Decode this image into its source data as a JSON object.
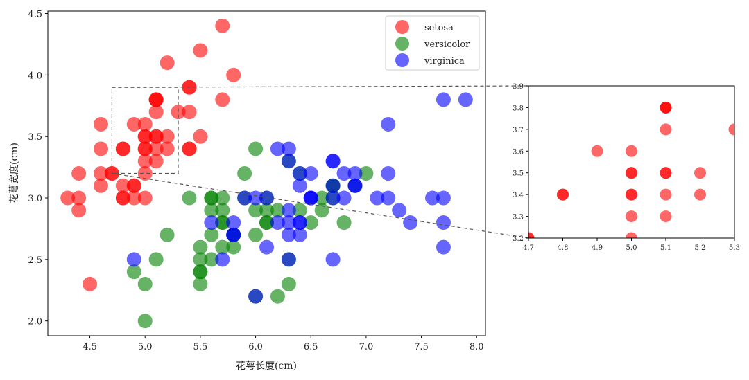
{
  "colors": {
    "setosa": "#ff0000",
    "versicolor": "#008000",
    "virginica": "#0000ff"
  },
  "chart_data": {
    "type": "scatter",
    "title": "",
    "xlabel": "花萼长度(cm)",
    "ylabel": "花萼宽度(cm)",
    "xlim": [
      4.12,
      8.08
    ],
    "ylim": [
      1.88,
      4.52
    ],
    "xticks": [
      4.5,
      5.0,
      5.5,
      6.0,
      6.5,
      7.0,
      7.5,
      8.0
    ],
    "xtick_labels": [
      "4.5",
      "5.0",
      "5.5",
      "6.0",
      "6.5",
      "7.0",
      "7.5",
      "8.0"
    ],
    "yticks": [
      2.0,
      2.5,
      3.0,
      3.5,
      4.0,
      4.5
    ],
    "ytick_labels": [
      "2.0",
      "2.5",
      "3.0",
      "3.5",
      "4.0",
      "4.5"
    ],
    "legend": [
      "setosa",
      "versicolor",
      "virginica"
    ],
    "legend_position": "top-right",
    "series": [
      {
        "name": "setosa",
        "color": "#ff0000",
        "points": [
          [
            5.1,
            3.5
          ],
          [
            4.9,
            3.0
          ],
          [
            4.7,
            3.2
          ],
          [
            4.6,
            3.1
          ],
          [
            5.0,
            3.6
          ],
          [
            5.4,
            3.9
          ],
          [
            4.6,
            3.4
          ],
          [
            5.0,
            3.4
          ],
          [
            4.4,
            2.9
          ],
          [
            4.9,
            3.1
          ],
          [
            5.4,
            3.7
          ],
          [
            4.8,
            3.4
          ],
          [
            4.8,
            3.0
          ],
          [
            4.3,
            3.0
          ],
          [
            5.8,
            4.0
          ],
          [
            5.7,
            4.4
          ],
          [
            5.4,
            3.9
          ],
          [
            5.1,
            3.5
          ],
          [
            5.7,
            3.8
          ],
          [
            5.1,
            3.8
          ],
          [
            5.4,
            3.4
          ],
          [
            5.1,
            3.7
          ],
          [
            4.6,
            3.6
          ],
          [
            5.1,
            3.3
          ],
          [
            4.8,
            3.4
          ],
          [
            5.0,
            3.0
          ],
          [
            5.0,
            3.4
          ],
          [
            5.2,
            3.5
          ],
          [
            5.2,
            3.4
          ],
          [
            4.7,
            3.2
          ],
          [
            4.8,
            3.1
          ],
          [
            5.4,
            3.4
          ],
          [
            5.2,
            4.1
          ],
          [
            5.5,
            4.2
          ],
          [
            4.9,
            3.1
          ],
          [
            5.0,
            3.2
          ],
          [
            5.5,
            3.5
          ],
          [
            4.9,
            3.6
          ],
          [
            4.4,
            3.0
          ],
          [
            5.1,
            3.4
          ],
          [
            5.0,
            3.5
          ],
          [
            4.5,
            2.3
          ],
          [
            4.4,
            3.2
          ],
          [
            5.0,
            3.5
          ],
          [
            5.1,
            3.8
          ],
          [
            4.8,
            3.0
          ],
          [
            5.1,
            3.8
          ],
          [
            4.6,
            3.2
          ],
          [
            5.3,
            3.7
          ],
          [
            5.0,
            3.3
          ]
        ]
      },
      {
        "name": "versicolor",
        "color": "#008000",
        "points": [
          [
            7.0,
            3.2
          ],
          [
            6.4,
            3.2
          ],
          [
            6.9,
            3.1
          ],
          [
            5.5,
            2.3
          ],
          [
            6.5,
            2.8
          ],
          [
            5.7,
            2.8
          ],
          [
            6.3,
            3.3
          ],
          [
            4.9,
            2.4
          ],
          [
            6.6,
            2.9
          ],
          [
            5.2,
            2.7
          ],
          [
            5.0,
            2.0
          ],
          [
            5.9,
            3.0
          ],
          [
            6.0,
            2.2
          ],
          [
            6.1,
            2.9
          ],
          [
            5.6,
            2.9
          ],
          [
            6.7,
            3.1
          ],
          [
            5.6,
            3.0
          ],
          [
            5.8,
            2.7
          ],
          [
            6.2,
            2.2
          ],
          [
            5.6,
            2.5
          ],
          [
            5.9,
            3.2
          ],
          [
            6.1,
            2.8
          ],
          [
            6.3,
            2.5
          ],
          [
            6.1,
            2.8
          ],
          [
            6.4,
            2.9
          ],
          [
            6.6,
            3.0
          ],
          [
            6.8,
            2.8
          ],
          [
            6.7,
            3.0
          ],
          [
            6.0,
            2.9
          ],
          [
            5.7,
            2.6
          ],
          [
            5.5,
            2.4
          ],
          [
            5.5,
            2.4
          ],
          [
            5.8,
            2.7
          ],
          [
            6.0,
            2.7
          ],
          [
            5.4,
            3.0
          ],
          [
            6.0,
            3.4
          ],
          [
            6.7,
            3.1
          ],
          [
            6.3,
            2.3
          ],
          [
            5.6,
            3.0
          ],
          [
            5.5,
            2.5
          ],
          [
            5.5,
            2.6
          ],
          [
            6.1,
            3.0
          ],
          [
            5.8,
            2.6
          ],
          [
            5.0,
            2.3
          ],
          [
            5.6,
            2.7
          ],
          [
            5.7,
            3.0
          ],
          [
            5.7,
            2.9
          ],
          [
            6.2,
            2.9
          ],
          [
            5.1,
            2.5
          ],
          [
            5.7,
            2.8
          ]
        ]
      },
      {
        "name": "virginica",
        "color": "#0000ff",
        "points": [
          [
            6.3,
            3.3
          ],
          [
            5.8,
            2.7
          ],
          [
            7.1,
            3.0
          ],
          [
            6.3,
            2.9
          ],
          [
            6.5,
            3.0
          ],
          [
            7.6,
            3.0
          ],
          [
            4.9,
            2.5
          ],
          [
            7.3,
            2.9
          ],
          [
            6.7,
            2.5
          ],
          [
            7.2,
            3.6
          ],
          [
            6.5,
            3.2
          ],
          [
            6.4,
            2.7
          ],
          [
            6.8,
            3.0
          ],
          [
            5.7,
            2.5
          ],
          [
            5.8,
            2.8
          ],
          [
            6.4,
            3.2
          ],
          [
            6.5,
            3.0
          ],
          [
            7.7,
            3.8
          ],
          [
            7.7,
            2.6
          ],
          [
            6.0,
            2.2
          ],
          [
            6.9,
            3.2
          ],
          [
            5.6,
            2.8
          ],
          [
            7.7,
            2.8
          ],
          [
            6.3,
            2.7
          ],
          [
            6.7,
            3.3
          ],
          [
            7.2,
            3.2
          ],
          [
            6.2,
            2.8
          ],
          [
            6.1,
            3.0
          ],
          [
            6.4,
            2.8
          ],
          [
            7.2,
            3.0
          ],
          [
            7.4,
            2.8
          ],
          [
            7.9,
            3.8
          ],
          [
            6.4,
            2.8
          ],
          [
            6.3,
            2.8
          ],
          [
            6.1,
            2.6
          ],
          [
            7.7,
            3.0
          ],
          [
            6.3,
            3.4
          ],
          [
            6.4,
            3.1
          ],
          [
            6.0,
            3.0
          ],
          [
            6.9,
            3.1
          ],
          [
            6.7,
            3.1
          ],
          [
            6.9,
            3.1
          ],
          [
            5.8,
            2.7
          ],
          [
            6.8,
            3.2
          ],
          [
            6.7,
            3.3
          ],
          [
            6.7,
            3.0
          ],
          [
            6.3,
            2.5
          ],
          [
            6.5,
            3.0
          ],
          [
            6.2,
            3.4
          ],
          [
            5.9,
            3.0
          ]
        ]
      }
    ],
    "inset": {
      "xlim": [
        4.7,
        5.3
      ],
      "ylim": [
        3.2,
        3.9
      ],
      "xticks": [
        4.7,
        4.8,
        4.9,
        5.0,
        5.1,
        5.2,
        5.3
      ],
      "xtick_labels": [
        "4.7",
        "4.8",
        "4.9",
        "5.0",
        "5.1",
        "5.2",
        "5.3"
      ],
      "yticks": [
        3.2,
        3.3,
        3.4,
        3.5,
        3.6,
        3.7,
        3.8,
        3.9
      ],
      "ytick_labels": [
        "3.2",
        "3.3",
        "3.4",
        "3.5",
        "3.6",
        "3.7",
        "3.8",
        "3.9"
      ]
    }
  }
}
